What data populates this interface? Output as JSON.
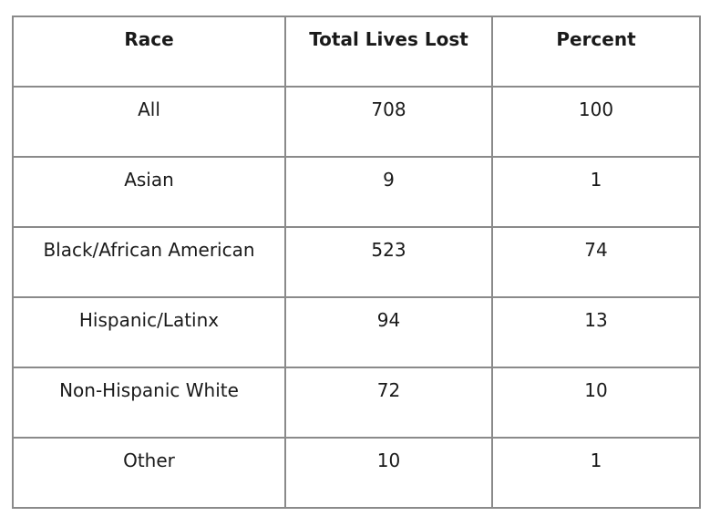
{
  "chart_data": {
    "type": "table",
    "columns": [
      "Race",
      "Total Lives Lost",
      "Percent"
    ],
    "rows": [
      [
        "All",
        "708",
        "100"
      ],
      [
        "Asian",
        "9",
        "1"
      ],
      [
        "Black/African American",
        "523",
        "74"
      ],
      [
        "Hispanic/Latinx",
        "94",
        "13"
      ],
      [
        "Non-Hispanic White",
        "72",
        "10"
      ],
      [
        "Other",
        "10",
        "1"
      ]
    ]
  },
  "colors": {
    "border": "#8a8a8a",
    "text": "#1a1a1a",
    "background": "#ffffff"
  }
}
